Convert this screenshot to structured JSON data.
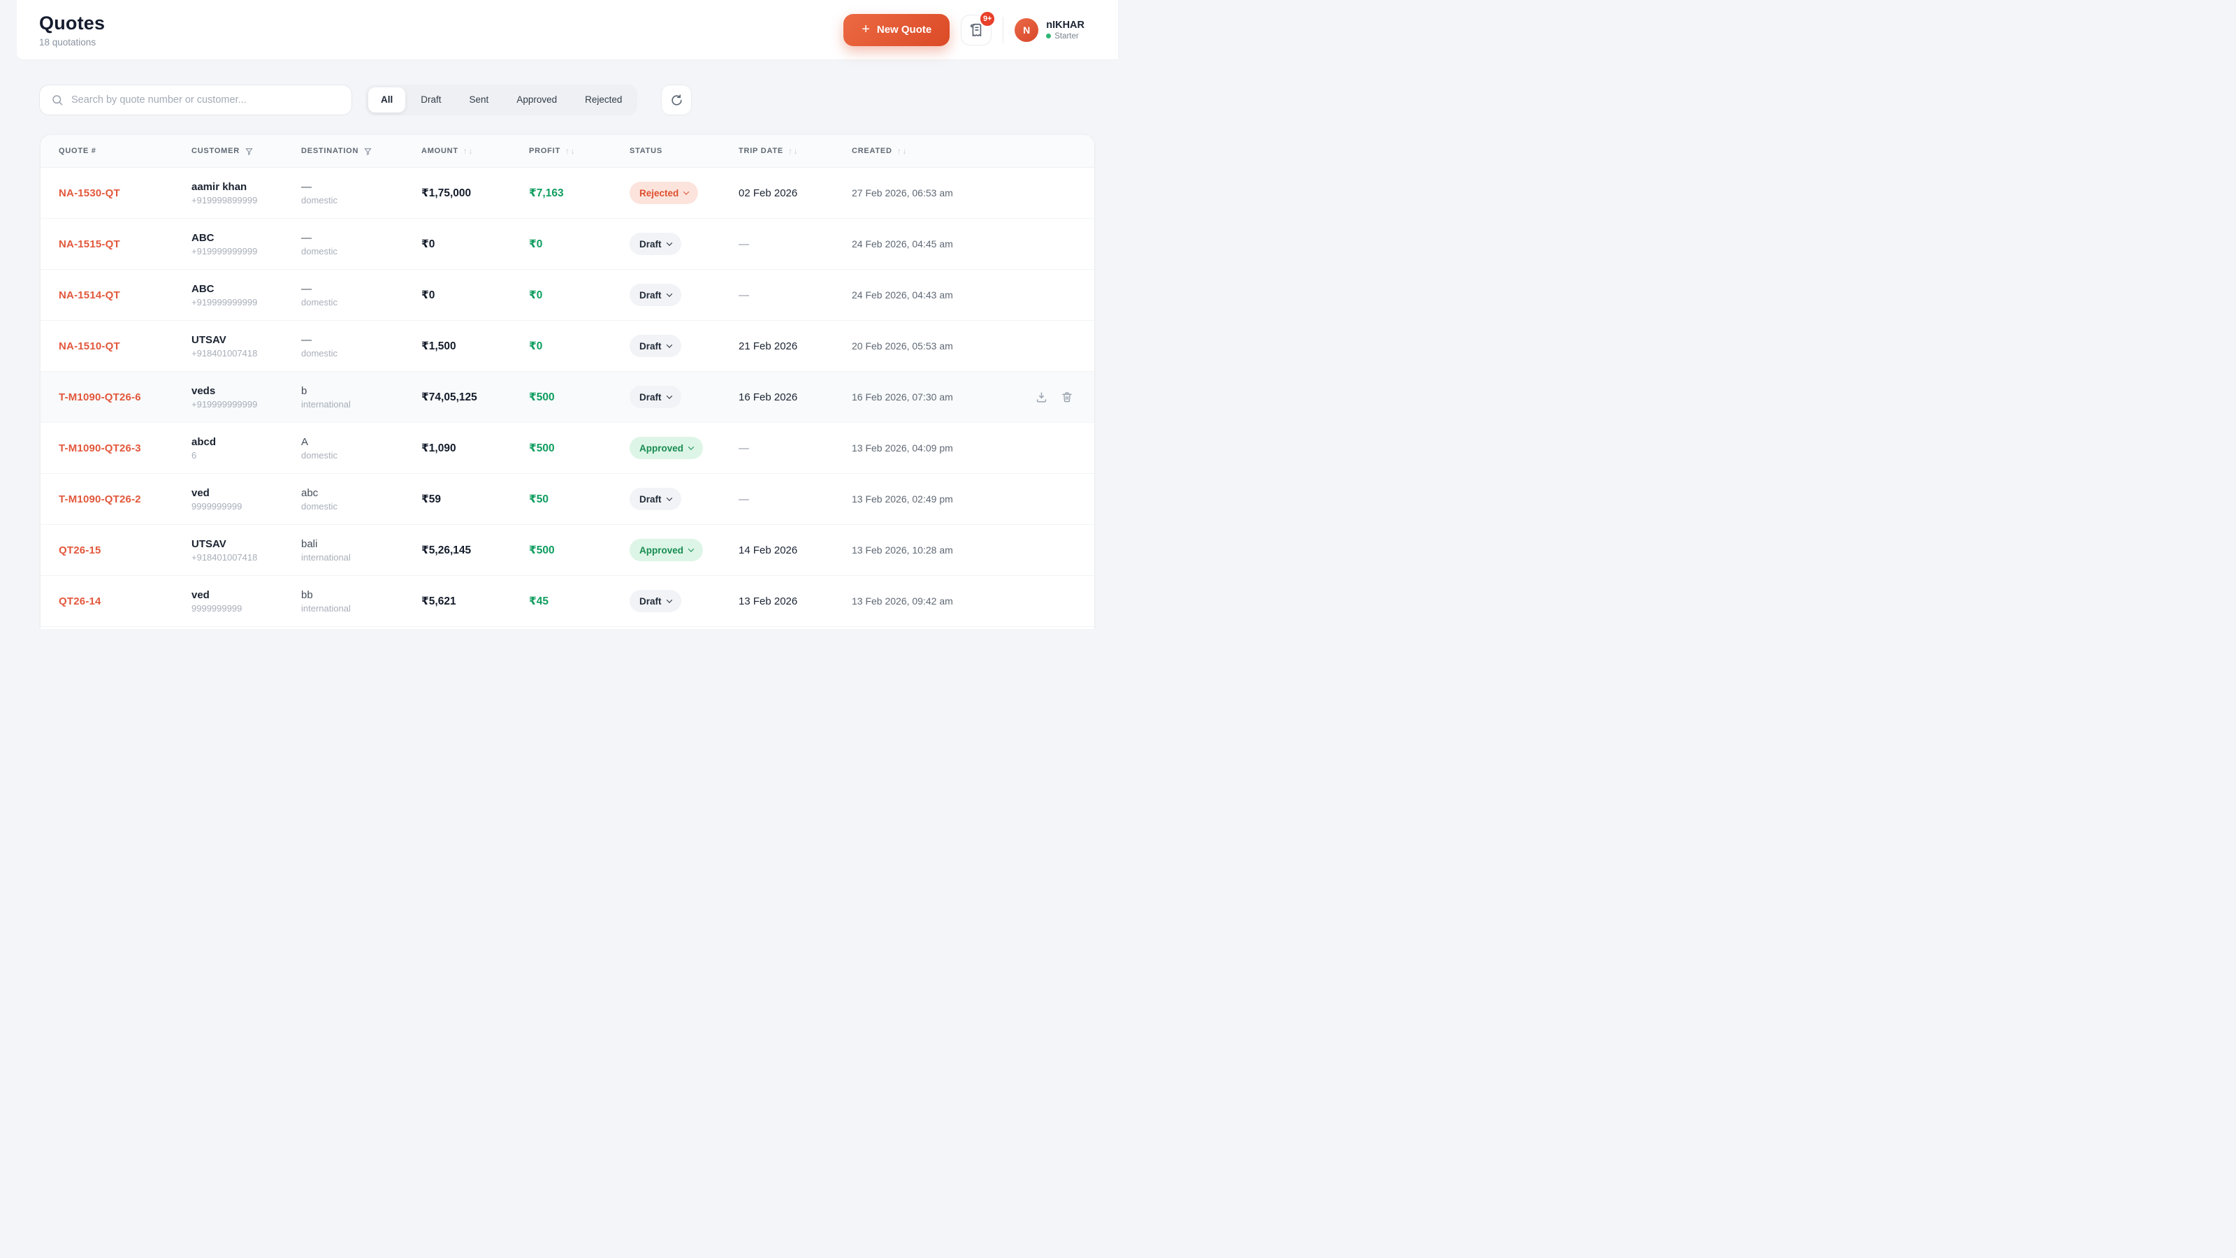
{
  "header": {
    "title": "Quotes",
    "subtitle": "18 quotations",
    "new_quote_label": "New Quote",
    "notification_badge": "9+",
    "user": {
      "initial": "N",
      "name": "nIKHAR",
      "plan": "Starter"
    }
  },
  "toolbar": {
    "search_placeholder": "Search by quote number or customer...",
    "tabs": [
      {
        "label": "All",
        "active": true
      },
      {
        "label": "Draft",
        "active": false
      },
      {
        "label": "Sent",
        "active": false
      },
      {
        "label": "Approved",
        "active": false
      },
      {
        "label": "Rejected",
        "active": false
      }
    ]
  },
  "table": {
    "columns": [
      {
        "label": "QUOTE #",
        "icon": "none"
      },
      {
        "label": "CUSTOMER",
        "icon": "filter"
      },
      {
        "label": "DESTINATION",
        "icon": "filter"
      },
      {
        "label": "AMOUNT",
        "icon": "sort"
      },
      {
        "label": "PROFIT",
        "icon": "sort"
      },
      {
        "label": "STATUS",
        "icon": "none"
      },
      {
        "label": "TRIP DATE",
        "icon": "sort"
      },
      {
        "label": "CREATED",
        "icon": "sort"
      }
    ],
    "rows": [
      {
        "quote": "NA-1530-QT",
        "customer": "aamir khan",
        "customer_sub": "+919999899999",
        "destination": "—",
        "destination_sub": "domestic",
        "amount": "₹1,75,000",
        "profit": "₹7,163",
        "status": "Rejected",
        "trip_date": "02 Feb 2026",
        "created": "27 Feb 2026, 06:53 am",
        "hovered": false
      },
      {
        "quote": "NA-1515-QT",
        "customer": "ABC",
        "customer_sub": "+919999999999",
        "destination": "—",
        "destination_sub": "domestic",
        "amount": "₹0",
        "profit": "₹0",
        "status": "Draft",
        "trip_date": "—",
        "created": "24 Feb 2026, 04:45 am",
        "hovered": false
      },
      {
        "quote": "NA-1514-QT",
        "customer": "ABC",
        "customer_sub": "+919999999999",
        "destination": "—",
        "destination_sub": "domestic",
        "amount": "₹0",
        "profit": "₹0",
        "status": "Draft",
        "trip_date": "—",
        "created": "24 Feb 2026, 04:43 am",
        "hovered": false
      },
      {
        "quote": "NA-1510-QT",
        "customer": "UTSAV",
        "customer_sub": "+918401007418",
        "destination": "—",
        "destination_sub": "domestic",
        "amount": "₹1,500",
        "profit": "₹0",
        "status": "Draft",
        "trip_date": "21 Feb 2026",
        "created": "20 Feb 2026, 05:53 am",
        "hovered": false
      },
      {
        "quote": "T-M1090-QT26-6",
        "customer": "veds",
        "customer_sub": "+919999999999",
        "destination": "b",
        "destination_sub": "international",
        "amount": "₹74,05,125",
        "profit": "₹500",
        "status": "Draft",
        "trip_date": "16 Feb 2026",
        "created": "16 Feb 2026, 07:30 am",
        "hovered": true
      },
      {
        "quote": "T-M1090-QT26-3",
        "customer": "abcd",
        "customer_sub": "6",
        "destination": "A",
        "destination_sub": "domestic",
        "amount": "₹1,090",
        "profit": "₹500",
        "status": "Approved",
        "trip_date": "—",
        "created": "13 Feb 2026, 04:09 pm",
        "hovered": false
      },
      {
        "quote": "T-M1090-QT26-2",
        "customer": "ved",
        "customer_sub": "9999999999",
        "destination": "abc",
        "destination_sub": "domestic",
        "amount": "₹59",
        "profit": "₹50",
        "status": "Draft",
        "trip_date": "—",
        "created": "13 Feb 2026, 02:49 pm",
        "hovered": false
      },
      {
        "quote": "QT26-15",
        "customer": "UTSAV",
        "customer_sub": "+918401007418",
        "destination": "bali",
        "destination_sub": "international",
        "amount": "₹5,26,145",
        "profit": "₹500",
        "status": "Approved",
        "trip_date": "14 Feb 2026",
        "created": "13 Feb 2026, 10:28 am",
        "hovered": false
      },
      {
        "quote": "QT26-14",
        "customer": "ved",
        "customer_sub": "9999999999",
        "destination": "bb",
        "destination_sub": "international",
        "amount": "₹5,621",
        "profit": "₹45",
        "status": "Draft",
        "trip_date": "13 Feb 2026",
        "created": "13 Feb 2026, 09:42 am",
        "hovered": false
      }
    ]
  },
  "colors": {
    "accent_orange": "#E2573B",
    "profit_green": "#0F9D5F",
    "rejected_bg": "#FCE4DD",
    "rejected_text": "#DD4F2E",
    "approved_bg": "#DDF5E6",
    "approved_text": "#178C52",
    "draft_bg": "#F1F3F6",
    "draft_text": "#222B38",
    "page_bg": "#F3F5F8"
  }
}
